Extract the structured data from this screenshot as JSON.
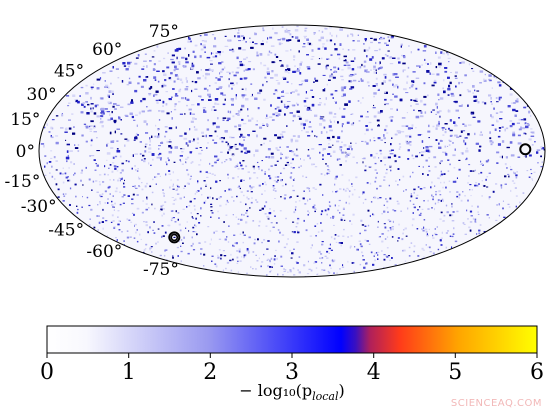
{
  "map": {
    "projection": "mollweide",
    "lat_labels": [
      {
        "deg": 75,
        "text": "75°"
      },
      {
        "deg": 60,
        "text": "60°"
      },
      {
        "deg": 45,
        "text": "45°"
      },
      {
        "deg": 30,
        "text": "30°"
      },
      {
        "deg": 15,
        "text": "15°"
      },
      {
        "deg": 0,
        "text": "0°"
      },
      {
        "deg": -15,
        "text": "-15°"
      },
      {
        "deg": -30,
        "text": "-30°"
      },
      {
        "deg": -45,
        "text": "-45°"
      },
      {
        "deg": -60,
        "text": "-60°"
      },
      {
        "deg": -75,
        "text": "-75°"
      }
    ],
    "hotspots": [
      {
        "name": "hotspot-east-equator",
        "lon": -166,
        "lat": 1,
        "double": false
      },
      {
        "name": "hotspot-south-west",
        "lon": 115,
        "lat": -53,
        "double": true
      }
    ]
  },
  "colorbar": {
    "min": 0,
    "max": 6,
    "ticks": [
      "0",
      "1",
      "2",
      "3",
      "4",
      "5",
      "6"
    ],
    "label": "− log₁₀(p",
    "label_sub": "local",
    "label_close": ")",
    "stops": [
      "#ffffff",
      "#9a9af0",
      "#0000ff",
      "#ff3b1a",
      "#ffa500",
      "#ffff00"
    ]
  },
  "watermark": "SCIENCEAQ.COM"
}
